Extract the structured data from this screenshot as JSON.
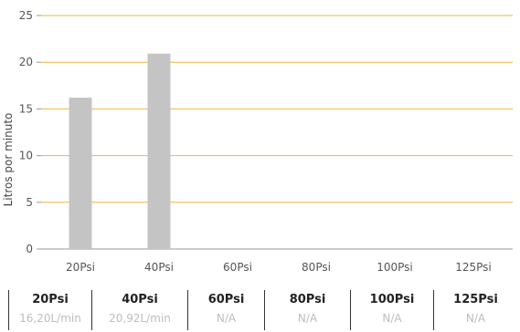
{
  "chart_data": {
    "type": "bar",
    "categories": [
      "20Psi",
      "40Psi",
      "60Psi",
      "80Psi",
      "100Psi",
      "125Psi"
    ],
    "values": [
      16.2,
      20.92,
      null,
      null,
      null,
      null
    ],
    "ylabel": "Litros por minuto",
    "xlabel": "",
    "ylim": [
      0,
      25
    ],
    "yticks": [
      0,
      5,
      10,
      15,
      20,
      25
    ],
    "grid": true,
    "colors": {
      "bar": "#c4c4c4",
      "grid": "#f0b43c",
      "axis": "#999999"
    }
  },
  "table": {
    "cells": [
      {
        "label": "20Psi",
        "value": "16,20L/min"
      },
      {
        "label": "40Psi",
        "value": "20,92L/min"
      },
      {
        "label": "60Psi",
        "value": "N/A"
      },
      {
        "label": "80Psi",
        "value": "N/A"
      },
      {
        "label": "100Psi",
        "value": "N/A"
      },
      {
        "label": "125Psi",
        "value": "N/A"
      }
    ]
  }
}
